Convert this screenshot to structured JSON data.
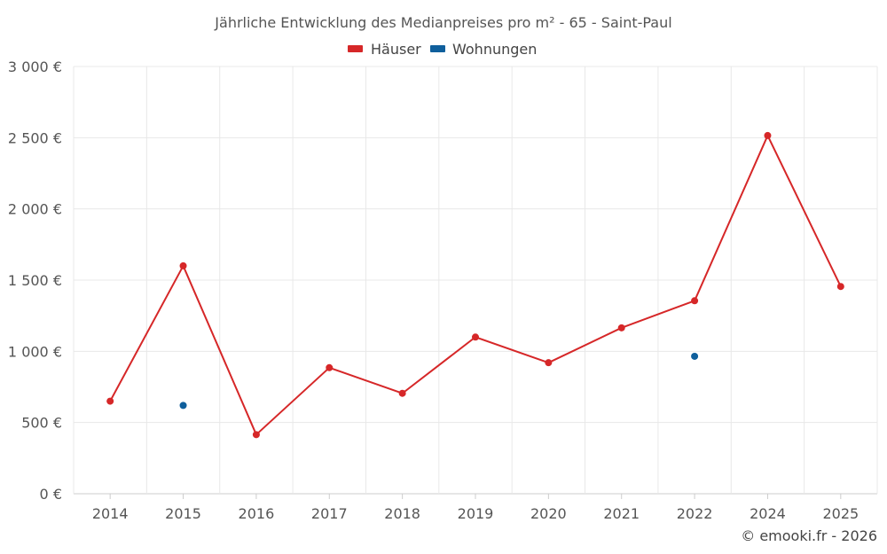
{
  "chart_data": {
    "type": "line",
    "title": "Jährliche Entwicklung des Medianpreises pro m² - 65 - Saint-Paul",
    "categories": [
      "2014",
      "2015",
      "2016",
      "2017",
      "2018",
      "2019",
      "2020",
      "2021",
      "2022",
      "2024",
      "2025"
    ],
    "ylim": [
      0,
      3000
    ],
    "yticks": [
      {
        "value": 0,
        "label": "0 €"
      },
      {
        "value": 500,
        "label": "500 €"
      },
      {
        "value": 1000,
        "label": "1 000 €"
      },
      {
        "value": 1500,
        "label": "1 500 €"
      },
      {
        "value": 2000,
        "label": "2 000 €"
      },
      {
        "value": 2500,
        "label": "2 500 €"
      },
      {
        "value": 3000,
        "label": "3 000 €"
      }
    ],
    "grid": true,
    "legend_position": "top-center",
    "series": [
      {
        "name": "Häuser",
        "color": "#d62728",
        "values": [
          650,
          1600,
          415,
          885,
          705,
          1100,
          920,
          1165,
          1355,
          2515,
          1455
        ]
      },
      {
        "name": "Wohnungen",
        "color": "#0f5f9c",
        "values": [
          null,
          620,
          null,
          null,
          null,
          null,
          null,
          null,
          965,
          null,
          null
        ]
      }
    ]
  },
  "credit": "© emooki.fr - 2026"
}
